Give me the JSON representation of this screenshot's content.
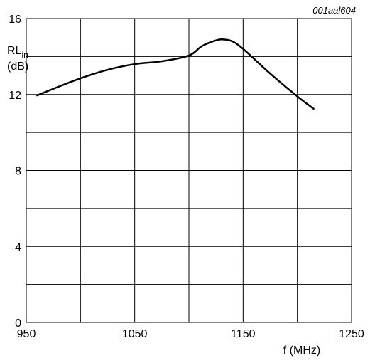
{
  "figure_id": "001aal604",
  "chart_data": {
    "type": "line",
    "ylabel_main": "RL",
    "ylabel_sub": "in",
    "ylabel_unit": "(dB)",
    "xlabel": "f (MHz)",
    "xlim": [
      950,
      1250
    ],
    "ylim": [
      0,
      16
    ],
    "x_ticks": [
      950,
      1050,
      1150,
      1250
    ],
    "y_ticks": [
      0,
      4,
      8,
      12,
      16
    ],
    "x_grid_step": 50,
    "y_grid_step": 2,
    "grid": true,
    "series": [
      {
        "x": [
          960,
          975,
          1000,
          1025,
          1050,
          1075,
          1100,
          1112,
          1125,
          1132,
          1140,
          1150,
          1175,
          1200,
          1215
        ],
        "y": [
          11.95,
          12.3,
          12.85,
          13.3,
          13.6,
          13.75,
          14.05,
          14.55,
          14.85,
          14.9,
          14.8,
          14.4,
          13.1,
          11.9,
          11.25
        ]
      }
    ]
  },
  "colors": {
    "line": "#000000",
    "grid": "#000000",
    "background": "#ffffff"
  }
}
